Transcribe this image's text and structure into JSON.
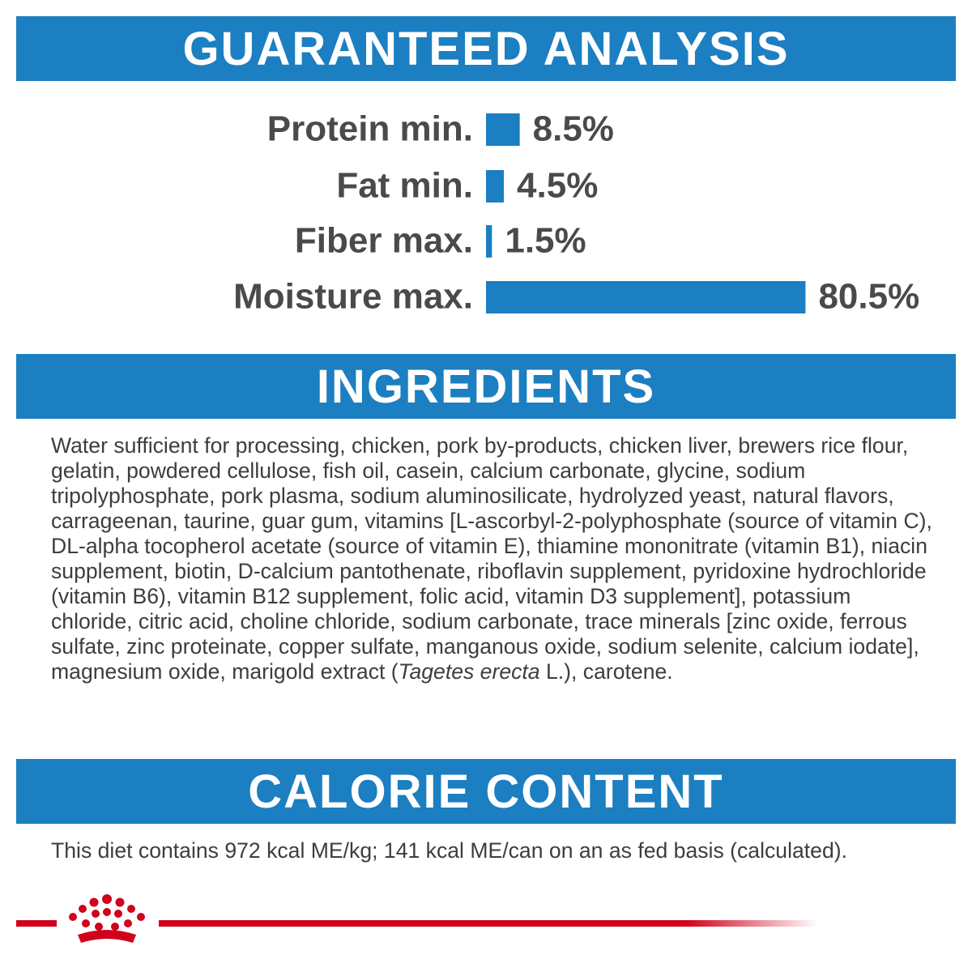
{
  "analysis": {
    "title": "GUARANTEED ANALYSIS"
  },
  "chart_data": {
    "type": "bar",
    "orientation": "horizontal",
    "color": "#1b7fc1",
    "categories": [
      "Protein min.",
      "Fat min.",
      "Fiber max.",
      "Moisture max."
    ],
    "values": [
      8.5,
      4.5,
      1.5,
      80.5
    ],
    "value_labels": [
      "8.5%",
      "4.5%",
      "1.5%",
      "80.5%"
    ]
  },
  "ingredients": {
    "title": "INGREDIENTS",
    "text_before": "Water sufficient for processing, chicken, pork by-products, chicken liver, brewers rice flour, gelatin, powdered cellulose, fish oil, casein, calcium carbonate, glycine, sodium tripolyphosphate, pork plasma, sodium aluminosilicate, hydrolyzed yeast, natural flavors, carrageenan, taurine, guar gum, vitamins [L-ascorbyl-2-polyphosphate (source of vitamin C), DL-alpha tocopherol acetate (source of vitamin E), thiamine mononitrate (vitamin B1), niacin supplement, biotin, D-calcium pantothenate, riboflavin supplement, pyridoxine hydrochloride (vitamin B6), vitamin B12 supplement, folic acid, vitamin D3 supplement], potassium chloride, citric acid, choline chloride, sodium carbonate, trace minerals [zinc oxide, ferrous sulfate, zinc proteinate, copper sulfate, manganous oxide, sodium selenite, calcium iodate], magnesium oxide, marigold extract (",
    "italic": "Tagetes erecta",
    "text_after": " L.), carotene."
  },
  "calorie": {
    "title": "CALORIE CONTENT",
    "text": "This diet contains 972 kcal ME/kg; 141 kcal ME/can on an as fed basis (calculated)."
  }
}
